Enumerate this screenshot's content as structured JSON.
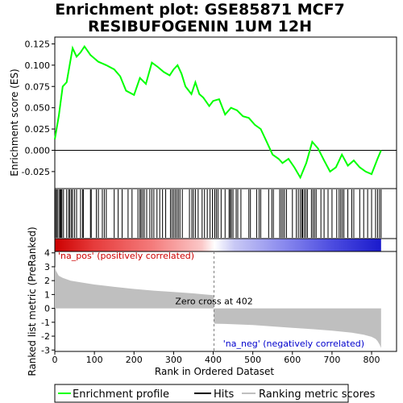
{
  "title_line1": "Enrichment plot: GSE85871 MCF7",
  "title_line2": "RESIBUFOGENIN 1UM 12H",
  "colors": {
    "es_line": "#00ff00",
    "hits": "#000000",
    "metric_fill": "#bfbfbf",
    "pos_label": "#cc0000",
    "neg_label": "#0000cc",
    "zero_line": "#808080"
  },
  "chart_data": [
    {
      "type": "line",
      "name": "enrichment-profile",
      "ylabel": "Enrichment score (ES)",
      "xlim": [
        0,
        863
      ],
      "ylim": [
        -0.045,
        0.133
      ],
      "yticks": [
        -0.025,
        0.0,
        0.025,
        0.05,
        0.075,
        0.1,
        0.125
      ],
      "ytick_labels": [
        "-0.025",
        "0.000",
        "0.025",
        "0.050",
        "0.075",
        "0.100",
        "0.125"
      ],
      "series": [
        {
          "name": "Enrichment profile",
          "x": [
            0,
            10,
            20,
            30,
            45,
            55,
            65,
            75,
            90,
            110,
            130,
            150,
            165,
            180,
            200,
            215,
            230,
            245,
            260,
            275,
            290,
            300,
            310,
            320,
            330,
            345,
            355,
            365,
            375,
            390,
            400,
            415,
            430,
            445,
            460,
            475,
            490,
            505,
            520,
            535,
            550,
            565,
            575,
            590,
            605,
            620,
            635,
            650,
            665,
            680,
            695,
            710,
            725,
            740,
            755,
            770,
            785,
            800,
            815,
            824
          ],
          "y": [
            0.013,
            0.04,
            0.075,
            0.08,
            0.12,
            0.11,
            0.115,
            0.122,
            0.112,
            0.104,
            0.1,
            0.095,
            0.087,
            0.07,
            0.065,
            0.085,
            0.078,
            0.103,
            0.098,
            0.092,
            0.088,
            0.095,
            0.1,
            0.09,
            0.075,
            0.066,
            0.08,
            0.066,
            0.062,
            0.052,
            0.058,
            0.06,
            0.042,
            0.05,
            0.047,
            0.04,
            0.038,
            0.03,
            0.025,
            0.01,
            -0.005,
            -0.01,
            -0.015,
            -0.01,
            -0.02,
            -0.032,
            -0.015,
            0.01,
            0.002,
            -0.012,
            -0.025,
            -0.02,
            -0.005,
            -0.018,
            -0.012,
            -0.02,
            -0.025,
            -0.028,
            -0.01,
            0.0
          ]
        }
      ]
    },
    {
      "type": "hits",
      "name": "gene-hits",
      "xlim": [
        0,
        863
      ],
      "x": [
        2,
        5,
        8,
        12,
        14,
        16,
        18,
        22,
        30,
        35,
        38,
        42,
        45,
        50,
        55,
        65,
        70,
        72,
        90,
        92,
        105,
        110,
        120,
        125,
        130,
        150,
        160,
        170,
        185,
        195,
        210,
        215,
        218,
        222,
        226,
        232,
        240,
        245,
        250,
        258,
        265,
        272,
        280,
        292,
        296,
        300,
        304,
        308,
        312,
        316,
        322,
        340,
        346,
        350,
        355,
        362,
        372,
        378,
        385,
        392,
        398,
        404,
        408,
        412,
        420,
        430,
        440,
        443,
        446,
        450,
        458,
        462,
        470,
        490,
        494,
        510,
        516,
        520,
        540,
        548,
        552,
        568,
        572,
        576,
        580,
        585,
        600,
        610,
        615,
        620,
        624,
        626,
        630,
        634,
        638,
        648,
        652,
        656,
        660,
        672,
        680,
        690,
        700,
        712,
        718,
        722,
        726,
        730,
        740,
        750,
        755,
        770,
        780,
        790,
        800,
        810,
        815,
        820,
        824
      ]
    },
    {
      "type": "heatmap",
      "name": "ranked-list-colorbar",
      "xlim": [
        0,
        824
      ],
      "stops": [
        {
          "pos": 0.0,
          "color": "#cc0000"
        },
        {
          "pos": 0.12,
          "color": "#e63b3b"
        },
        {
          "pos": 0.3,
          "color": "#f47c7c"
        },
        {
          "pos": 0.45,
          "color": "#fbc8c8"
        },
        {
          "pos": 0.49,
          "color": "#ffffff"
        },
        {
          "pos": 0.55,
          "color": "#c9c9f5"
        },
        {
          "pos": 0.7,
          "color": "#8a8aee"
        },
        {
          "pos": 0.85,
          "color": "#4c4ce0"
        },
        {
          "pos": 1.0,
          "color": "#1a1acc"
        }
      ]
    },
    {
      "type": "area",
      "name": "ranked-list-metric",
      "xlabel": "Rank in Ordered Dataset",
      "ylabel": "Ranked list metric (PreRanked)",
      "xlim": [
        0,
        863
      ],
      "ylim": [
        -3.1,
        4.1
      ],
      "xticks": [
        0,
        100,
        200,
        300,
        400,
        500,
        600,
        700,
        800
      ],
      "yticks": [
        -3,
        -2,
        -1,
        0,
        1,
        2,
        3,
        4
      ],
      "x": [
        0,
        3,
        10,
        20,
        40,
        60,
        100,
        150,
        200,
        250,
        300,
        350,
        380,
        401,
        402,
        405,
        430,
        500,
        550,
        600,
        650,
        700,
        750,
        780,
        800,
        810,
        815,
        820,
        824
      ],
      "y": [
        3.0,
        2.7,
        2.35,
        2.2,
        2.0,
        1.9,
        1.72,
        1.55,
        1.4,
        1.28,
        1.18,
        1.08,
        1.0,
        0.95,
        -1.05,
        -1.1,
        -1.12,
        -1.2,
        -1.3,
        -1.4,
        -1.5,
        -1.6,
        -1.75,
        -1.9,
        -2.05,
        -2.2,
        -2.35,
        -2.6,
        -2.85
      ],
      "zero_cross_rank": 402,
      "annotations": {
        "zero_cross": "Zero cross at 402",
        "pos": "'na_pos' (positively correlated)",
        "neg": "'na_neg' (negatively correlated)"
      }
    }
  ],
  "legend": [
    {
      "label": "Enrichment profile",
      "icon": "green-line"
    },
    {
      "label": "Hits",
      "icon": "black-line"
    },
    {
      "label": "Ranking metric scores",
      "icon": "gray-line"
    }
  ]
}
